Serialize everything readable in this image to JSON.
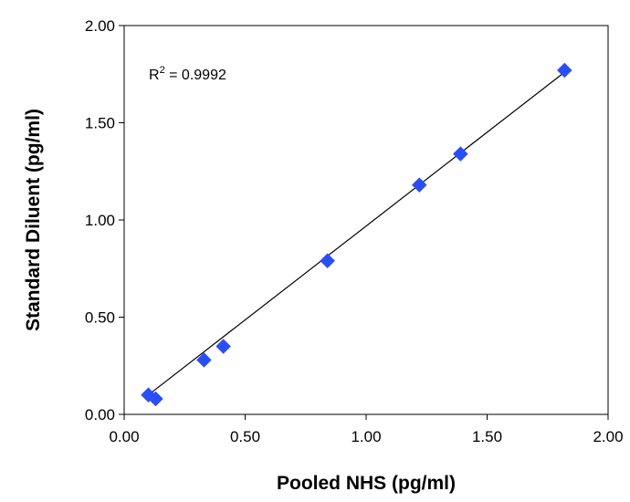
{
  "chart_data": {
    "type": "scatter",
    "title": "",
    "xlabel": "Pooled NHS (pg/ml)",
    "ylabel": "Standard Diluent (pg/ml)",
    "xlim": [
      0,
      2
    ],
    "ylim": [
      0,
      2
    ],
    "x_ticks": [
      "0.00",
      "0.50",
      "1.00",
      "1.50",
      "2.00"
    ],
    "y_ticks": [
      "0.00",
      "0.50",
      "1.00",
      "1.50",
      "2.00"
    ],
    "grid": false,
    "legend": "none",
    "series": [
      {
        "marker": "diamond",
        "color": "#2a4ef5",
        "points": [
          {
            "x": 0.1,
            "y": 0.1
          },
          {
            "x": 0.13,
            "y": 0.08
          },
          {
            "x": 0.33,
            "y": 0.28
          },
          {
            "x": 0.41,
            "y": 0.35
          },
          {
            "x": 0.84,
            "y": 0.79
          },
          {
            "x": 1.22,
            "y": 1.18
          },
          {
            "x": 1.39,
            "y": 1.34
          },
          {
            "x": 1.82,
            "y": 1.77
          }
        ]
      }
    ],
    "trendline": {
      "type": "linear",
      "x_range": [
        0.1,
        1.82
      ],
      "y_range": [
        0.1,
        1.76
      ],
      "color": "#000000"
    },
    "annotation": {
      "text_base": "R",
      "text_sup": "2",
      "text_rest": " = 0.9992"
    }
  }
}
